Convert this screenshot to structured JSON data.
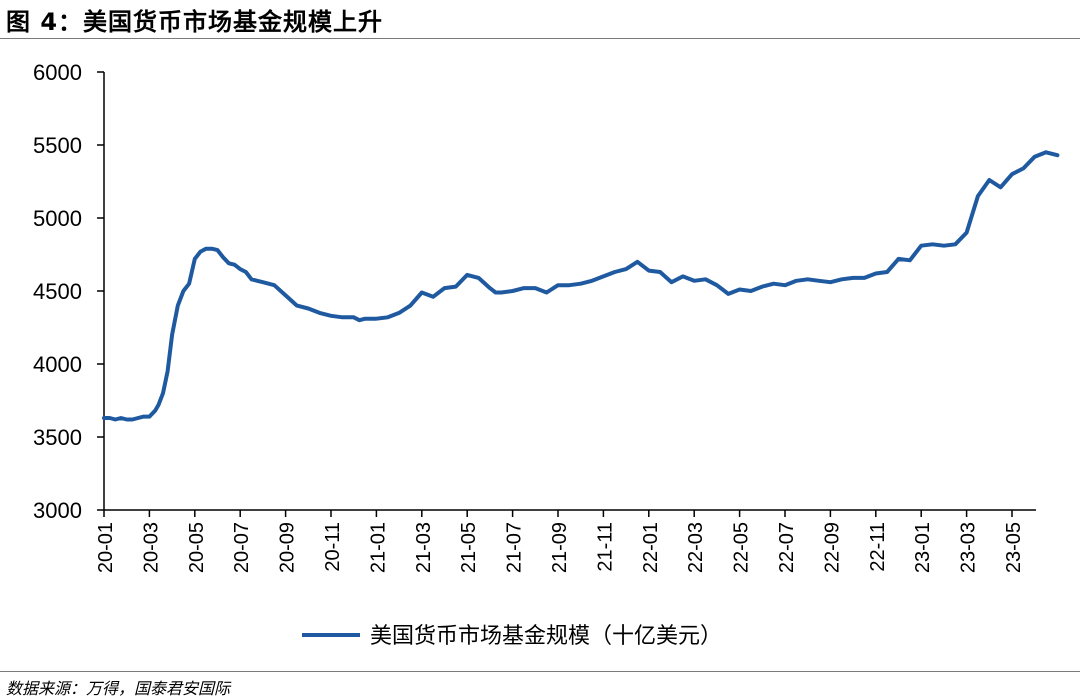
{
  "figure": {
    "title": "图 4：美国货币市场基金规模上升",
    "source": "数据来源：万得，国泰君安国际"
  },
  "colors": {
    "line": "#1f5aa0",
    "axis": "#000000"
  },
  "chart_data": {
    "type": "line",
    "title": "",
    "xlabel": "",
    "ylabel": "",
    "ylim": [
      3000,
      6000
    ],
    "yticks": [
      3000,
      3500,
      4000,
      4500,
      5000,
      5500,
      6000
    ],
    "xticks": [
      "20-01",
      "20-03",
      "20-05",
      "20-07",
      "20-09",
      "20-11",
      "21-01",
      "21-03",
      "21-05",
      "21-07",
      "21-09",
      "21-11",
      "22-01",
      "22-03",
      "22-05",
      "22-07",
      "22-09",
      "22-11",
      "23-01",
      "23-03",
      "23-05"
    ],
    "grid": false,
    "legend": "bottom-center",
    "series": [
      {
        "name": "美国货币市场基金规模（十亿美元）",
        "x": [
          0.0,
          0.25,
          0.5,
          0.75,
          1.0,
          1.25,
          1.5,
          1.75,
          2.0,
          2.25,
          2.4,
          2.6,
          2.8,
          3.0,
          3.25,
          3.5,
          3.75,
          4.0,
          4.25,
          4.5,
          4.75,
          5.0,
          5.25,
          5.5,
          5.75,
          6.0,
          6.25,
          6.5,
          6.75,
          7.0,
          7.5,
          8.0,
          8.5,
          9.0,
          9.5,
          10.0,
          10.5,
          11.0,
          11.25,
          11.5,
          12.0,
          12.5,
          13.0,
          13.5,
          14.0,
          14.5,
          15.0,
          15.5,
          16.0,
          16.5,
          17.0,
          17.25,
          17.5,
          18.0,
          18.5,
          19.0,
          19.5,
          20.0,
          20.5,
          21.0,
          21.5,
          22.0,
          22.5,
          23.0,
          23.5,
          24.0,
          24.5,
          25.0,
          25.5,
          26.0,
          26.5,
          27.0,
          27.5,
          28.0,
          28.5,
          29.0,
          29.5,
          30.0,
          30.5,
          31.0,
          31.5,
          32.0,
          32.5,
          33.0,
          33.5,
          34.0,
          34.5,
          35.0,
          35.5,
          36.0,
          36.5,
          37.0,
          37.5,
          38.0,
          38.5,
          39.0,
          39.5,
          40.0,
          40.5,
          41.0,
          41.5,
          42.0
        ],
        "values": [
          3630,
          3630,
          3620,
          3630,
          3620,
          3620,
          3630,
          3640,
          3640,
          3680,
          3720,
          3800,
          3950,
          4200,
          4400,
          4500,
          4550,
          4720,
          4770,
          4790,
          4790,
          4780,
          4730,
          4690,
          4680,
          4650,
          4630,
          4580,
          4570,
          4560,
          4540,
          4470,
          4400,
          4380,
          4350,
          4330,
          4320,
          4320,
          4300,
          4310,
          4310,
          4320,
          4350,
          4400,
          4490,
          4460,
          4520,
          4530,
          4610,
          4590,
          4520,
          4490,
          4490,
          4500,
          4520,
          4520,
          4490,
          4540,
          4540,
          4550,
          4570,
          4600,
          4630,
          4650,
          4700,
          4640,
          4630,
          4560,
          4600,
          4570,
          4580,
          4540,
          4480,
          4510,
          4500,
          4530,
          4550,
          4540,
          4570,
          4580,
          4570,
          4560,
          4580,
          4590,
          4590,
          4620,
          4630,
          4720,
          4710,
          4810,
          4820,
          4810,
          4820,
          4900,
          5150,
          5260,
          5210,
          5300,
          5340,
          5420,
          5450,
          5430
        ]
      }
    ]
  }
}
